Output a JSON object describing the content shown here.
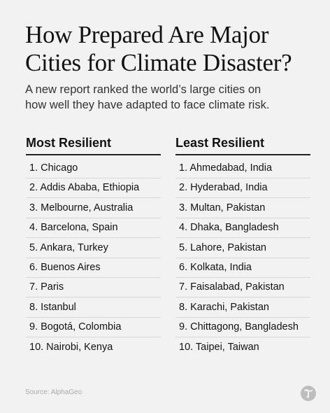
{
  "header": {
    "title": [
      "How Prepared Are Major",
      "Cities for Climate Disaster?"
    ],
    "subtitle": [
      "A new report ranked the world’s large cities on",
      "how well they have adapted to face climate risk."
    ]
  },
  "columns": [
    {
      "heading": "Most Resilient",
      "items": [
        "1. Chicago",
        "2. Addis Ababa, Ethiopia",
        "3. Melbourne, Australia",
        "4. Barcelona, Spain",
        "5. Ankara, Turkey",
        "6. Buenos Aires",
        "7. Paris",
        "8. Istanbul",
        "9. Bogotá, Colombia",
        "10. Nairobi, Kenya"
      ]
    },
    {
      "heading": "Least Resilient",
      "items": [
        "1. Ahmedabad, India",
        "2. Hyderabad, India",
        "3. Multan, Pakistan",
        "4. Dhaka, Bangladesh",
        "5. Lahore, Pakistan",
        "6. Kolkata, India",
        "7. Faisalabad, Pakistan",
        "8. Karachi, Pakistan",
        "9. Chittagong, Bangladesh",
        "10. Taipei, Taiwan"
      ]
    }
  ],
  "footer": {
    "source": "Source: AlphaGeo"
  }
}
